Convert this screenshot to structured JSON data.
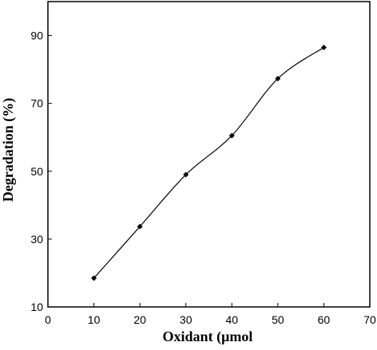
{
  "chart_data": {
    "type": "line",
    "title": "",
    "xlabel": "Oxidant (µmol",
    "ylabel": "Degradation (%)",
    "xlim": [
      0,
      70
    ],
    "ylim": [
      10,
      100
    ],
    "xticks": [
      0,
      10,
      20,
      30,
      40,
      50,
      60,
      70
    ],
    "yticks": [
      10,
      30,
      50,
      70,
      90
    ],
    "grid": false,
    "smooth": true,
    "series": [
      {
        "x": [
          10,
          20,
          30,
          40,
          50,
          60
        ],
        "y": [
          18.5,
          33.7,
          49,
          60.5,
          77.3,
          86.5
        ],
        "marker": "diamond",
        "color": "#000000"
      }
    ]
  }
}
